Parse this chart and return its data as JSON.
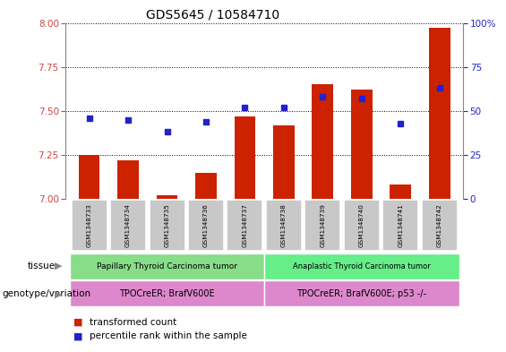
{
  "title": "GDS5645 / 10584710",
  "samples": [
    "GSM1348733",
    "GSM1348734",
    "GSM1348735",
    "GSM1348736",
    "GSM1348737",
    "GSM1348738",
    "GSM1348739",
    "GSM1348740",
    "GSM1348741",
    "GSM1348742"
  ],
  "transformed_count": [
    7.25,
    7.22,
    7.02,
    7.15,
    7.47,
    7.42,
    7.65,
    7.62,
    7.08,
    7.97
  ],
  "percentile_rank": [
    46,
    45,
    38,
    44,
    52,
    52,
    58,
    57,
    43,
    63
  ],
  "ylim_left": [
    7.0,
    8.0
  ],
  "ylim_right": [
    0,
    100
  ],
  "yticks_left": [
    7.0,
    7.25,
    7.5,
    7.75,
    8.0
  ],
  "yticks_right": [
    0,
    25,
    50,
    75,
    100
  ],
  "bar_color": "#cc2200",
  "dot_color": "#2222cc",
  "tick_color_left": "#cc4444",
  "tick_color_right": "#2222cc",
  "tissue_labels": [
    "Papillary Thyroid Carcinoma tumor",
    "Anaplastic Thyroid Carcinoma tumor"
  ],
  "tissue_color_1": "#88dd88",
  "tissue_color_2": "#66ee88",
  "tissue_split": 5,
  "genotype_labels": [
    "TPOCreER; BrafV600E",
    "TPOCreER; BrafV600E; p53 -/-"
  ],
  "genotype_color": "#dd88cc",
  "legend_red_label": "transformed count",
  "legend_blue_label": "percentile rank within the sample",
  "sample_bg_color": "#c8c8c8",
  "row_label_tissue": "tissue",
  "row_label_geno": "genotype/variation"
}
